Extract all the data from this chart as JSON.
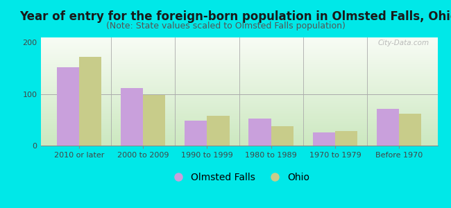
{
  "title": "Year of entry for the foreign-born population in Olmsted Falls, Ohio",
  "subtitle": "(Note: State values scaled to Olmsted Falls population)",
  "categories": [
    "2010 or later",
    "2000 to 2009",
    "1990 to 1999",
    "1980 to 1989",
    "1970 to 1979",
    "Before 1970"
  ],
  "olmsted_falls": [
    152,
    112,
    48,
    53,
    25,
    72
  ],
  "ohio": [
    172,
    98,
    58,
    38,
    28,
    62
  ],
  "olmsted_color": "#c9a0dc",
  "ohio_color": "#c8cc8a",
  "background_outer": "#00e8e8",
  "background_plot_top": "#f5faf5",
  "background_plot_bottom": "#d8ecd0",
  "ylim": [
    0,
    210
  ],
  "yticks": [
    0,
    100,
    200
  ],
  "bar_width": 0.35,
  "title_fontsize": 12,
  "subtitle_fontsize": 9,
  "tick_fontsize": 8,
  "legend_fontsize": 10,
  "axis_color": "#888888",
  "watermark": "City-Data.com"
}
